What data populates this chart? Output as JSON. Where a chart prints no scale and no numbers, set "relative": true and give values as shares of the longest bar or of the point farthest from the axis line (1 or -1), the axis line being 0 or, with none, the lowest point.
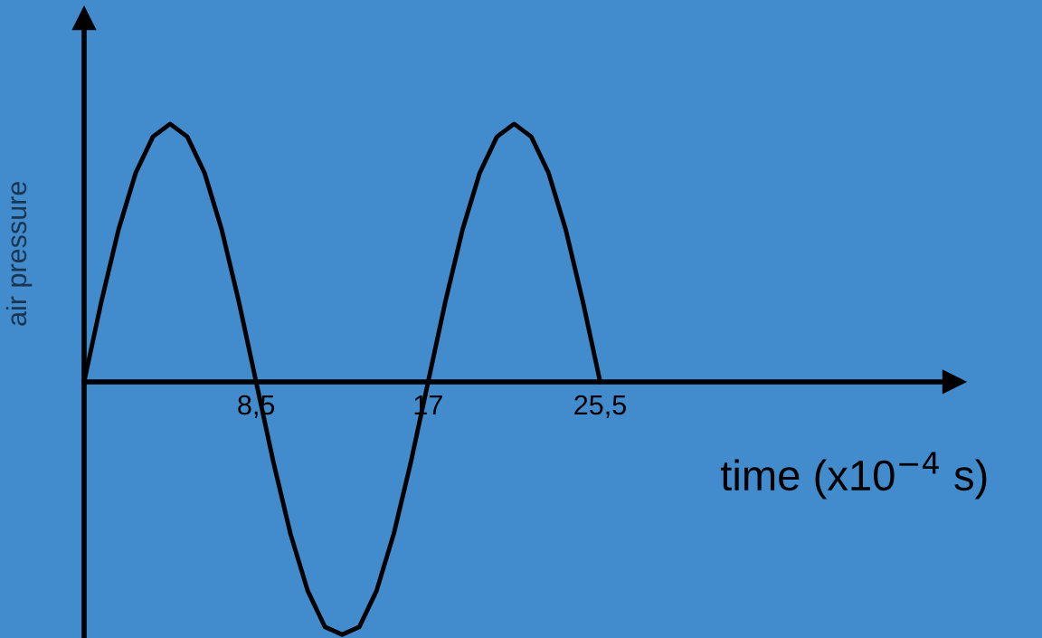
{
  "chart_data": {
    "type": "line",
    "relative": true,
    "xlabel": "time (x10$^{−4}$ s)",
    "ylabel": "air pressure",
    "x": [
      0,
      0.85,
      1.7,
      2.55,
      3.4,
      4.25,
      5.1,
      5.95,
      6.8,
      7.65,
      8.5,
      9.35,
      10.2,
      11.05,
      11.9,
      12.75,
      13.6,
      14.45,
      15.3,
      16.15,
      17,
      17.85,
      18.7,
      19.55,
      20.4,
      21.25,
      22.1,
      22.95,
      23.8,
      24.65,
      25.5
    ],
    "series": [
      {
        "color": "#000000",
        "values": [
          0,
          0.31,
          0.59,
          0.81,
          0.95,
          1,
          0.95,
          0.81,
          0.59,
          0.31,
          0,
          -0.31,
          -0.59,
          -0.81,
          -0.95,
          -0.98,
          -0.95,
          -0.81,
          -0.59,
          -0.31,
          0,
          0.31,
          0.59,
          0.81,
          0.95,
          1,
          0.95,
          0.81,
          0.59,
          0.31,
          0
        ]
      }
    ],
    "xlim": [
      0,
      43
    ],
    "xticks": [
      {
        "value": 8.5,
        "label": "8,5"
      },
      17,
      {
        "value": 25.5,
        "label": "25,5"
      }
    ],
    "grid": false,
    "legend": false,
    "marker": "none",
    "line_style": "solid"
  }
}
